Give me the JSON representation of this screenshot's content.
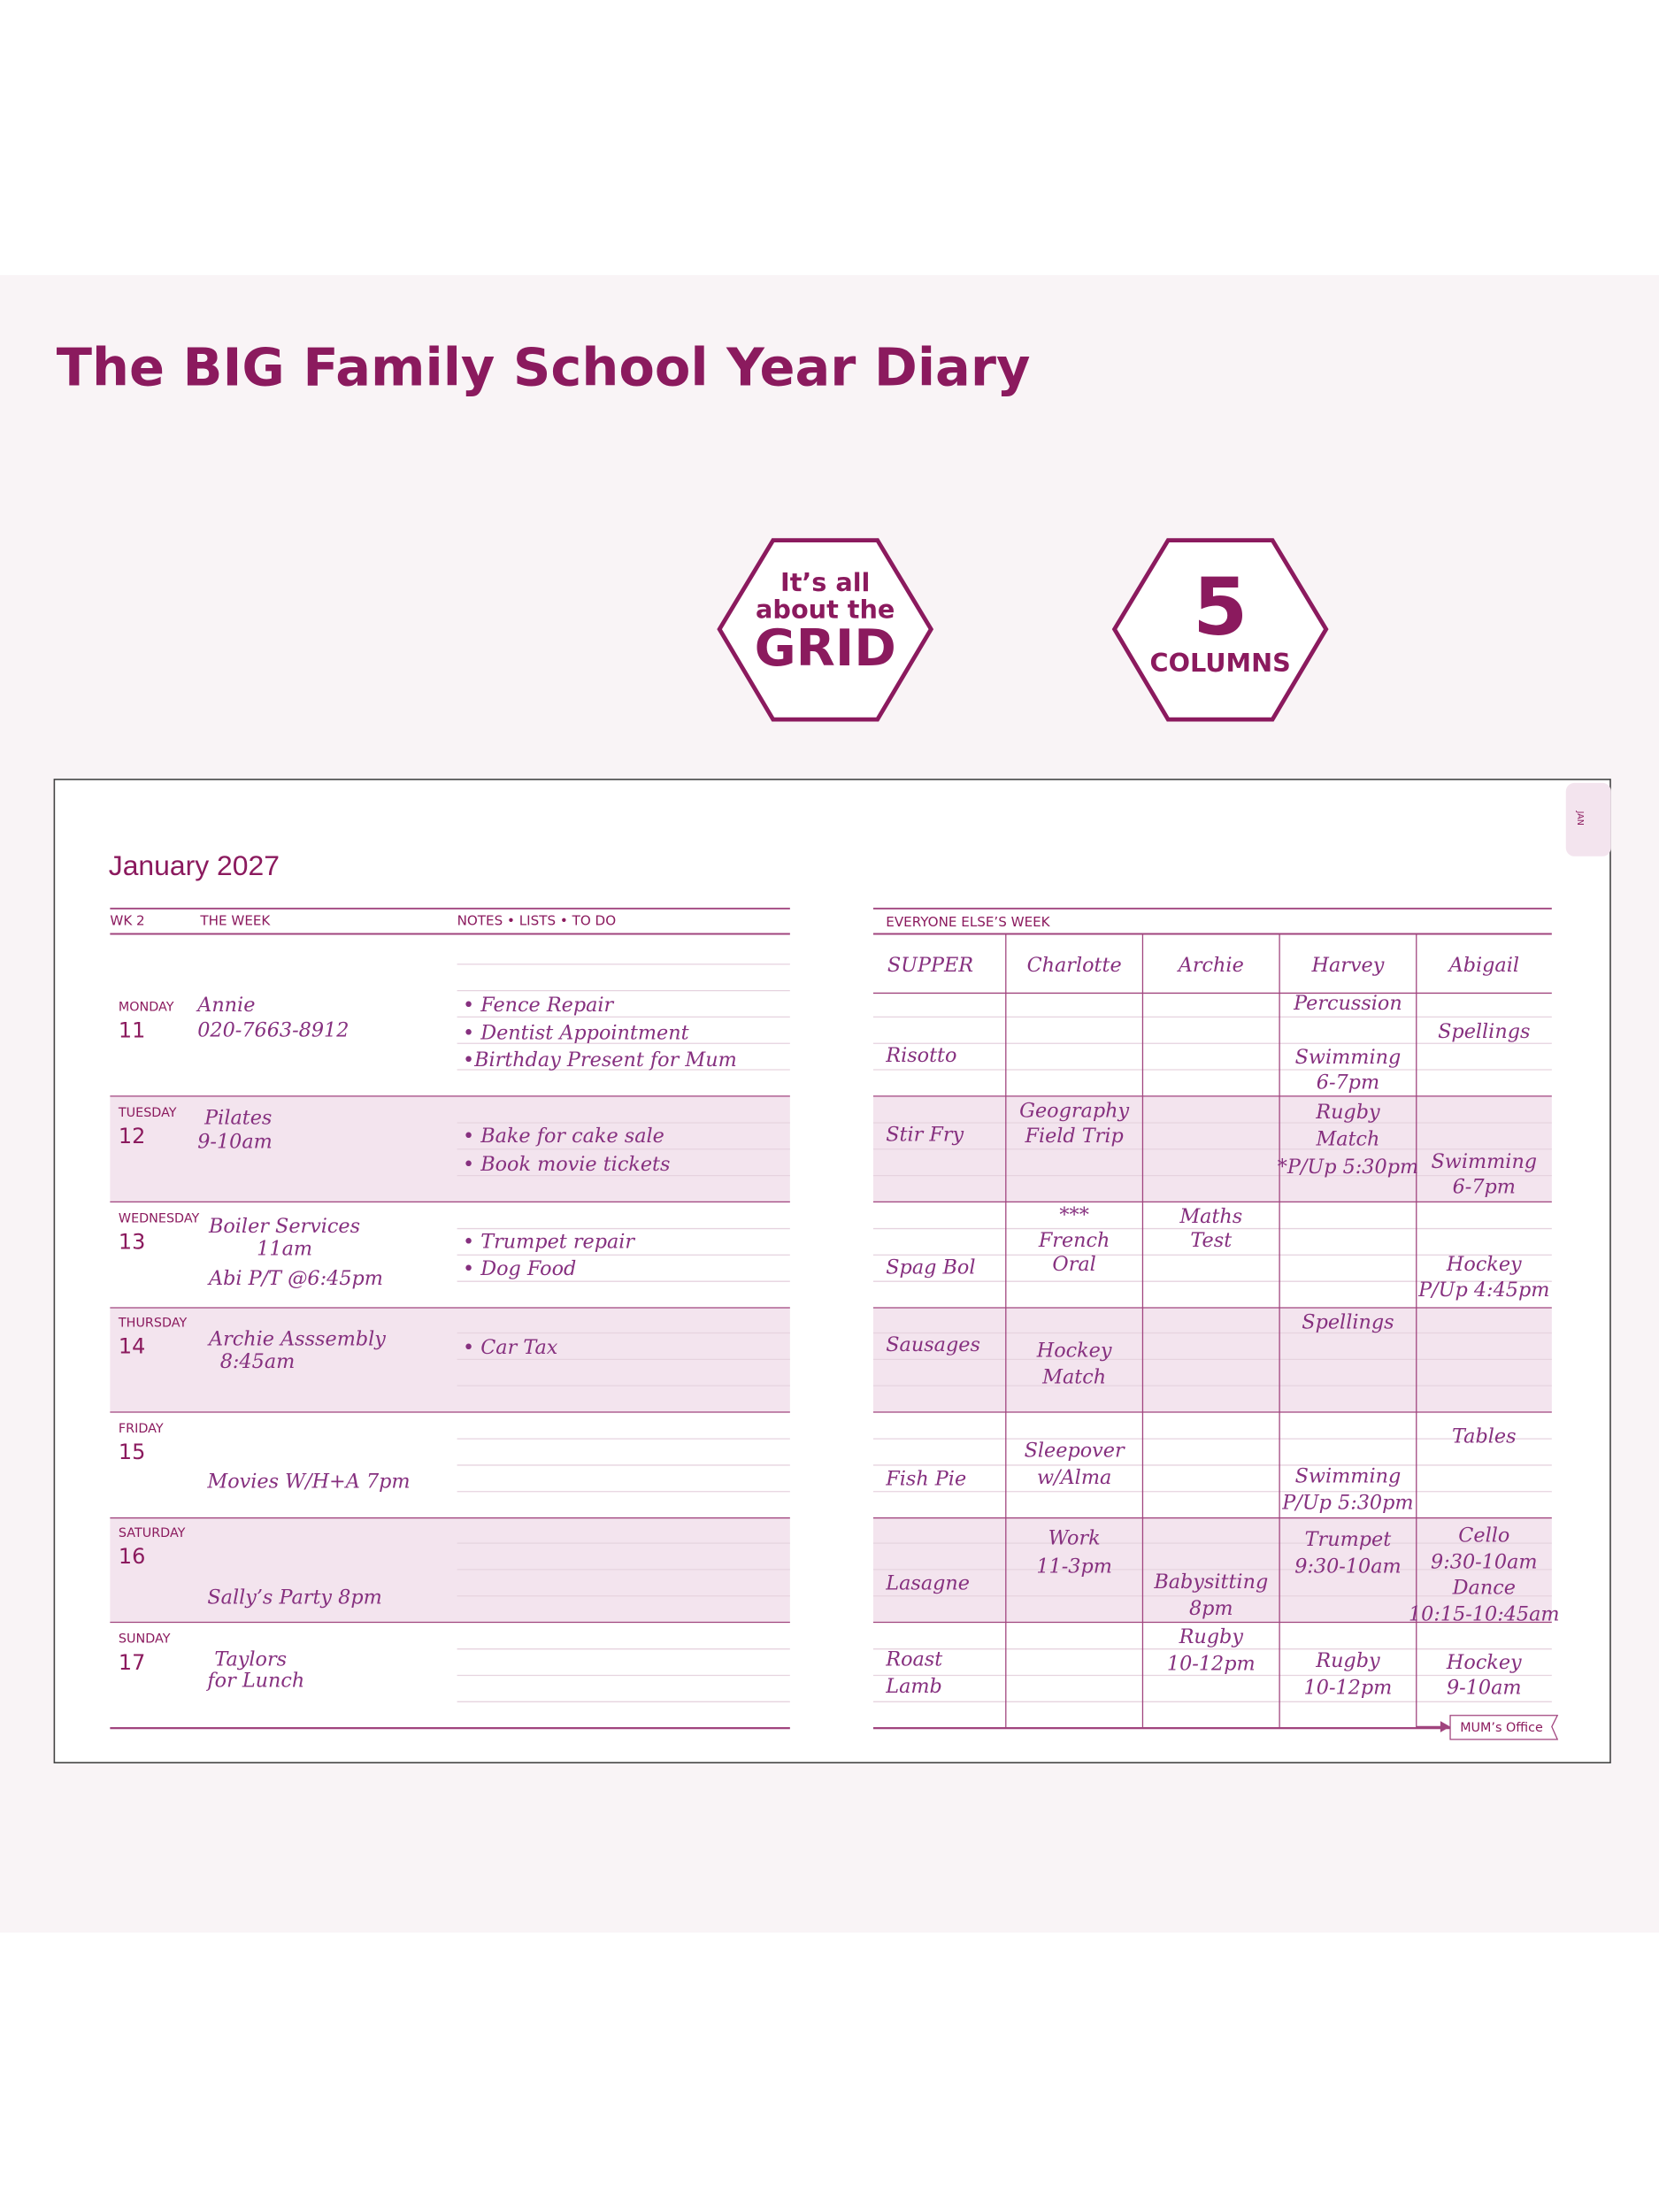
{
  "header": {
    "title": "The BIG Family School Year Diary"
  },
  "badges": [
    {
      "lines": [
        "It’s all",
        "about the",
        "GRID"
      ]
    },
    {
      "lines": [
        "5",
        "COLUMNS"
      ]
    }
  ],
  "diary": {
    "tab": "JAN",
    "month": "January 2027",
    "left_header": [
      "WK 2",
      "THE WEEK",
      "NOTES • LISTS • TO DO"
    ],
    "days": [
      {
        "name": "MONDAY",
        "date": "11",
        "entries": [
          "Annie",
          "020-7663-8912"
        ],
        "notes": [
          "• Fence Repair",
          "• Dentist Appointment",
          "•Birthday Present for Mum"
        ]
      },
      {
        "name": "TUESDAY",
        "date": "12",
        "entries": [
          "Pilates",
          "9-10am"
        ],
        "notes": [
          "• Bake for cake sale",
          "• Book movie tickets"
        ]
      },
      {
        "name": "WEDNESDAY",
        "date": "13",
        "entries": [
          "Boiler Services",
          "11am",
          "Abi P/T @6:45pm"
        ],
        "notes": [
          "• Trumpet repair",
          "• Dog Food"
        ]
      },
      {
        "name": "THURSDAY",
        "date": "14",
        "entries": [
          "Archie Asssembly",
          "8:45am"
        ],
        "notes": [
          "• Car Tax"
        ]
      },
      {
        "name": "FRIDAY",
        "date": "15",
        "entries": [
          "Movies W/H+A 7pm"
        ],
        "notes": []
      },
      {
        "name": "SATURDAY",
        "date": "16",
        "entries": [
          "Sally’s Party 8pm"
        ],
        "notes": []
      },
      {
        "name": "SUNDAY",
        "date": "17",
        "entries": [
          "Taylors",
          "for Lunch"
        ],
        "notes": []
      }
    ],
    "right_header": "EVERYONE ELSE’S WEEK",
    "columns": [
      "SUPPER",
      "Charlotte",
      "Archie",
      "Harvey",
      "Abigail"
    ],
    "rows": [
      [
        [
          "Risotto"
        ],
        [],
        [],
        [
          "Percussion",
          "Swimming",
          "6-7pm"
        ],
        [
          "Spellings"
        ]
      ],
      [
        [
          "Stir Fry"
        ],
        [
          "Geography",
          "Field Trip"
        ],
        [],
        [
          "Rugby",
          "Match",
          "*P/Up 5:30pm"
        ],
        [
          "Swimming",
          "6-7pm"
        ]
      ],
      [
        [
          "Spag Bol"
        ],
        [
          "***",
          "French",
          "Oral"
        ],
        [
          "Maths",
          "Test"
        ],
        [],
        [
          "Hockey",
          "P/Up 4:45pm"
        ]
      ],
      [
        [
          "Sausages"
        ],
        [
          "Hockey",
          "Match"
        ],
        [],
        [
          "Spellings"
        ],
        []
      ],
      [
        [
          "Fish Pie"
        ],
        [
          "Sleepover",
          "w/Alma"
        ],
        [],
        [
          "Swimming",
          "P/Up 5:30pm"
        ],
        [
          "Tables"
        ]
      ],
      [
        [
          "Lasagne"
        ],
        [
          "Work",
          "11-3pm"
        ],
        [
          "Babysitting",
          "8pm"
        ],
        [
          "Trumpet",
          "9:30-10am"
        ],
        [
          "Cello",
          "9:30-10am",
          "Dance",
          "10:15-10:45am"
        ]
      ],
      [
        [
          "Roast",
          "Lamb"
        ],
        [],
        [
          "Rugby",
          "10-12pm"
        ],
        [
          "Rugby",
          "10-12pm"
        ],
        [
          "Hockey",
          "9-10am"
        ]
      ]
    ],
    "footer": "MUM’s Office"
  }
}
